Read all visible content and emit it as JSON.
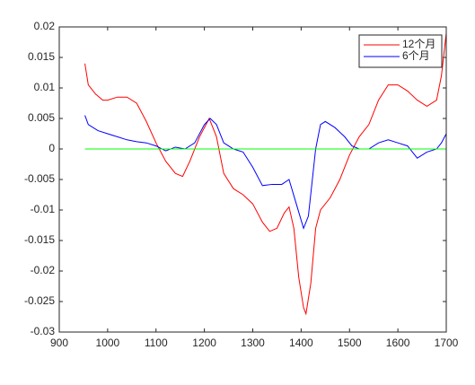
{
  "chart_data": {
    "type": "line",
    "xlim": [
      900,
      1700
    ],
    "xticks": [
      900,
      1000,
      1100,
      1200,
      1300,
      1400,
      1500,
      1600,
      1700
    ],
    "ylim": [
      -0.03,
      0.02
    ],
    "yticks": [
      -0.03,
      -0.025,
      -0.02,
      -0.015,
      -0.01,
      -0.005,
      0,
      0.005,
      0.01,
      0.015,
      0.02
    ],
    "legend": "top-right",
    "series": [
      {
        "name": "12个月",
        "color": "#ff0000",
        "x": [
          953,
          960,
          975,
          990,
          1000,
          1020,
          1040,
          1060,
          1080,
          1100,
          1120,
          1140,
          1155,
          1170,
          1190,
          1210,
          1225,
          1240,
          1260,
          1280,
          1300,
          1320,
          1335,
          1350,
          1365,
          1375,
          1385,
          1395,
          1405,
          1410,
          1420,
          1430,
          1440,
          1460,
          1480,
          1500,
          1520,
          1540,
          1560,
          1580,
          1600,
          1620,
          1640,
          1660,
          1680,
          1690,
          1700
        ],
        "values": [
          0.014,
          0.0105,
          0.009,
          0.008,
          0.008,
          0.0085,
          0.0085,
          0.0075,
          0.0045,
          0.001,
          -0.002,
          -0.004,
          -0.0045,
          -0.002,
          0.002,
          0.005,
          0.002,
          -0.004,
          -0.0065,
          -0.0075,
          -0.009,
          -0.012,
          -0.0135,
          -0.013,
          -0.0105,
          -0.0095,
          -0.013,
          -0.021,
          -0.026,
          -0.027,
          -0.022,
          -0.013,
          -0.01,
          -0.008,
          -0.005,
          -0.001,
          0.002,
          0.004,
          0.008,
          0.0105,
          0.0105,
          0.0095,
          0.008,
          0.007,
          0.008,
          0.012,
          0.019
        ]
      },
      {
        "name": "6个月",
        "color": "#0000ff",
        "x": [
          953,
          960,
          980,
          1000,
          1020,
          1040,
          1060,
          1080,
          1100,
          1120,
          1140,
          1160,
          1180,
          1200,
          1212,
          1225,
          1240,
          1260,
          1280,
          1300,
          1320,
          1340,
          1360,
          1375,
          1390,
          1405,
          1415,
          1430,
          1440,
          1450,
          1470,
          1490,
          1505,
          1520,
          1540,
          1560,
          1580,
          1600,
          1620,
          1640,
          1660,
          1680,
          1690,
          1700
        ],
        "values": [
          0.0055,
          0.004,
          0.003,
          0.0025,
          0.002,
          0.0015,
          0.0012,
          0.001,
          0.0005,
          -0.0003,
          0.0003,
          0,
          0.001,
          0.004,
          0.005,
          0.004,
          0.001,
          0,
          -0.0005,
          -0.003,
          -0.006,
          -0.0058,
          -0.0058,
          -0.005,
          -0.009,
          -0.013,
          -0.011,
          0,
          0.004,
          0.0045,
          0.0035,
          0.002,
          0.0005,
          0,
          0,
          0.001,
          0.0015,
          0.001,
          0.0005,
          -0.0015,
          -0.0005,
          0,
          0.001,
          0.0025
        ]
      },
      {
        "color": "#00ff00",
        "x": [
          953,
          1700
        ],
        "values": [
          0,
          0
        ]
      }
    ]
  }
}
